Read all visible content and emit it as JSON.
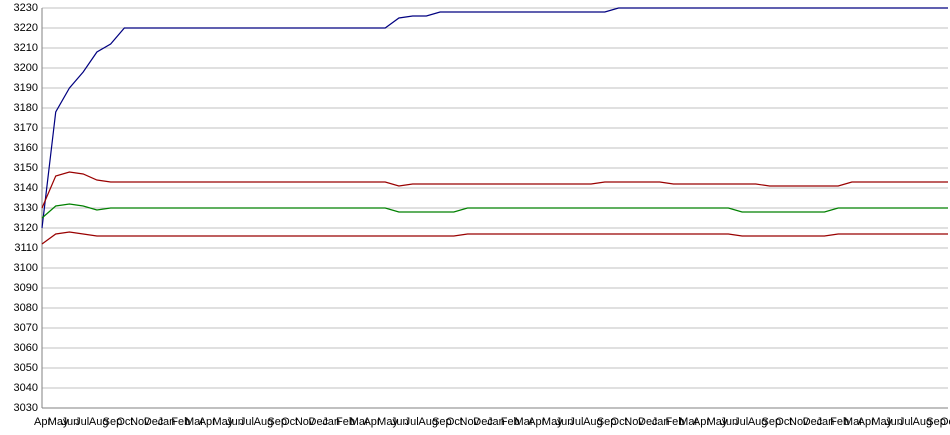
{
  "chart_data": {
    "type": "line",
    "categories": [
      "Apr",
      "May",
      "Jun",
      "Jul",
      "Aug",
      "Sep",
      "Oct",
      "Nov",
      "Dec",
      "Jan",
      "Feb",
      "Mar",
      "Apr",
      "May",
      "Jun",
      "Jul",
      "Aug",
      "Sep",
      "Oct",
      "Nov",
      "Dec",
      "Jan",
      "Feb",
      "Mar",
      "Apr",
      "May",
      "Jun",
      "Jul",
      "Aug",
      "Sep",
      "Oct",
      "Nov",
      "Dec",
      "Jan",
      "Feb",
      "Mar",
      "Apr",
      "May",
      "Jun",
      "Jul",
      "Aug",
      "Sep",
      "Oct",
      "Nov",
      "Dec",
      "Jan",
      "Feb",
      "Mar",
      "Apr",
      "May",
      "Jun",
      "Jul",
      "Aug",
      "Sep",
      "Oct",
      "Nov",
      "Dec",
      "Jan",
      "Feb",
      "Mar",
      "Apr",
      "May",
      "Jun",
      "Jul",
      "Aug",
      "Sep",
      "Oct"
    ],
    "series": [
      {
        "color": "#000080",
        "values": [
          3120,
          3178,
          3190,
          3198,
          3208,
          3212,
          3220,
          3220,
          3220,
          3220,
          3220,
          3220,
          3220,
          3220,
          3220,
          3220,
          3220,
          3220,
          3220,
          3220,
          3220,
          3220,
          3220,
          3220,
          3220,
          3220,
          3225,
          3226,
          3226,
          3228,
          3228,
          3228,
          3228,
          3228,
          3228,
          3228,
          3228,
          3228,
          3228,
          3228,
          3228,
          3228,
          3230,
          3230,
          3230,
          3230,
          3230,
          3230,
          3230,
          3230,
          3230,
          3230,
          3230,
          3230,
          3230,
          3230,
          3230,
          3230,
          3230,
          3230,
          3230,
          3230,
          3230,
          3230,
          3230,
          3230,
          3230
        ]
      },
      {
        "color": "#990000",
        "values": [
          3130,
          3146,
          3148,
          3147,
          3144,
          3143,
          3143,
          3143,
          3143,
          3143,
          3143,
          3143,
          3143,
          3143,
          3143,
          3143,
          3143,
          3143,
          3143,
          3143,
          3143,
          3143,
          3143,
          3143,
          3143,
          3143,
          3141,
          3142,
          3142,
          3142,
          3142,
          3142,
          3142,
          3142,
          3142,
          3142,
          3142,
          3142,
          3142,
          3142,
          3142,
          3143,
          3143,
          3143,
          3143,
          3143,
          3142,
          3142,
          3142,
          3142,
          3142,
          3142,
          3142,
          3141,
          3141,
          3141,
          3141,
          3141,
          3141,
          3143,
          3143,
          3143,
          3143,
          3143,
          3143,
          3143,
          3143
        ]
      },
      {
        "color": "#008000",
        "values": [
          3125,
          3131,
          3132,
          3131,
          3129,
          3130,
          3130,
          3130,
          3130,
          3130,
          3130,
          3130,
          3130,
          3130,
          3130,
          3130,
          3130,
          3130,
          3130,
          3130,
          3130,
          3130,
          3130,
          3130,
          3130,
          3130,
          3128,
          3128,
          3128,
          3128,
          3128,
          3130,
          3130,
          3130,
          3130,
          3130,
          3130,
          3130,
          3130,
          3130,
          3130,
          3130,
          3130,
          3130,
          3130,
          3130,
          3130,
          3130,
          3130,
          3130,
          3130,
          3128,
          3128,
          3128,
          3128,
          3128,
          3128,
          3128,
          3130,
          3130,
          3130,
          3130,
          3130,
          3130,
          3130,
          3130,
          3130
        ]
      },
      {
        "color": "#990000",
        "values": [
          3112,
          3117,
          3118,
          3117,
          3116,
          3116,
          3116,
          3116,
          3116,
          3116,
          3116,
          3116,
          3116,
          3116,
          3116,
          3116,
          3116,
          3116,
          3116,
          3116,
          3116,
          3116,
          3116,
          3116,
          3116,
          3116,
          3116,
          3116,
          3116,
          3116,
          3116,
          3117,
          3117,
          3117,
          3117,
          3117,
          3117,
          3117,
          3117,
          3117,
          3117,
          3117,
          3117,
          3117,
          3117,
          3117,
          3117,
          3117,
          3117,
          3117,
          3117,
          3116,
          3116,
          3116,
          3116,
          3116,
          3116,
          3116,
          3117,
          3117,
          3117,
          3117,
          3117,
          3117,
          3117,
          3117,
          3117
        ]
      }
    ],
    "ylim": [
      3030,
      3230
    ],
    "yticks": [
      3030,
      3040,
      3050,
      3060,
      3070,
      3080,
      3090,
      3100,
      3110,
      3120,
      3130,
      3140,
      3150,
      3160,
      3170,
      3180,
      3190,
      3200,
      3210,
      3220,
      3230
    ],
    "grid": true
  }
}
